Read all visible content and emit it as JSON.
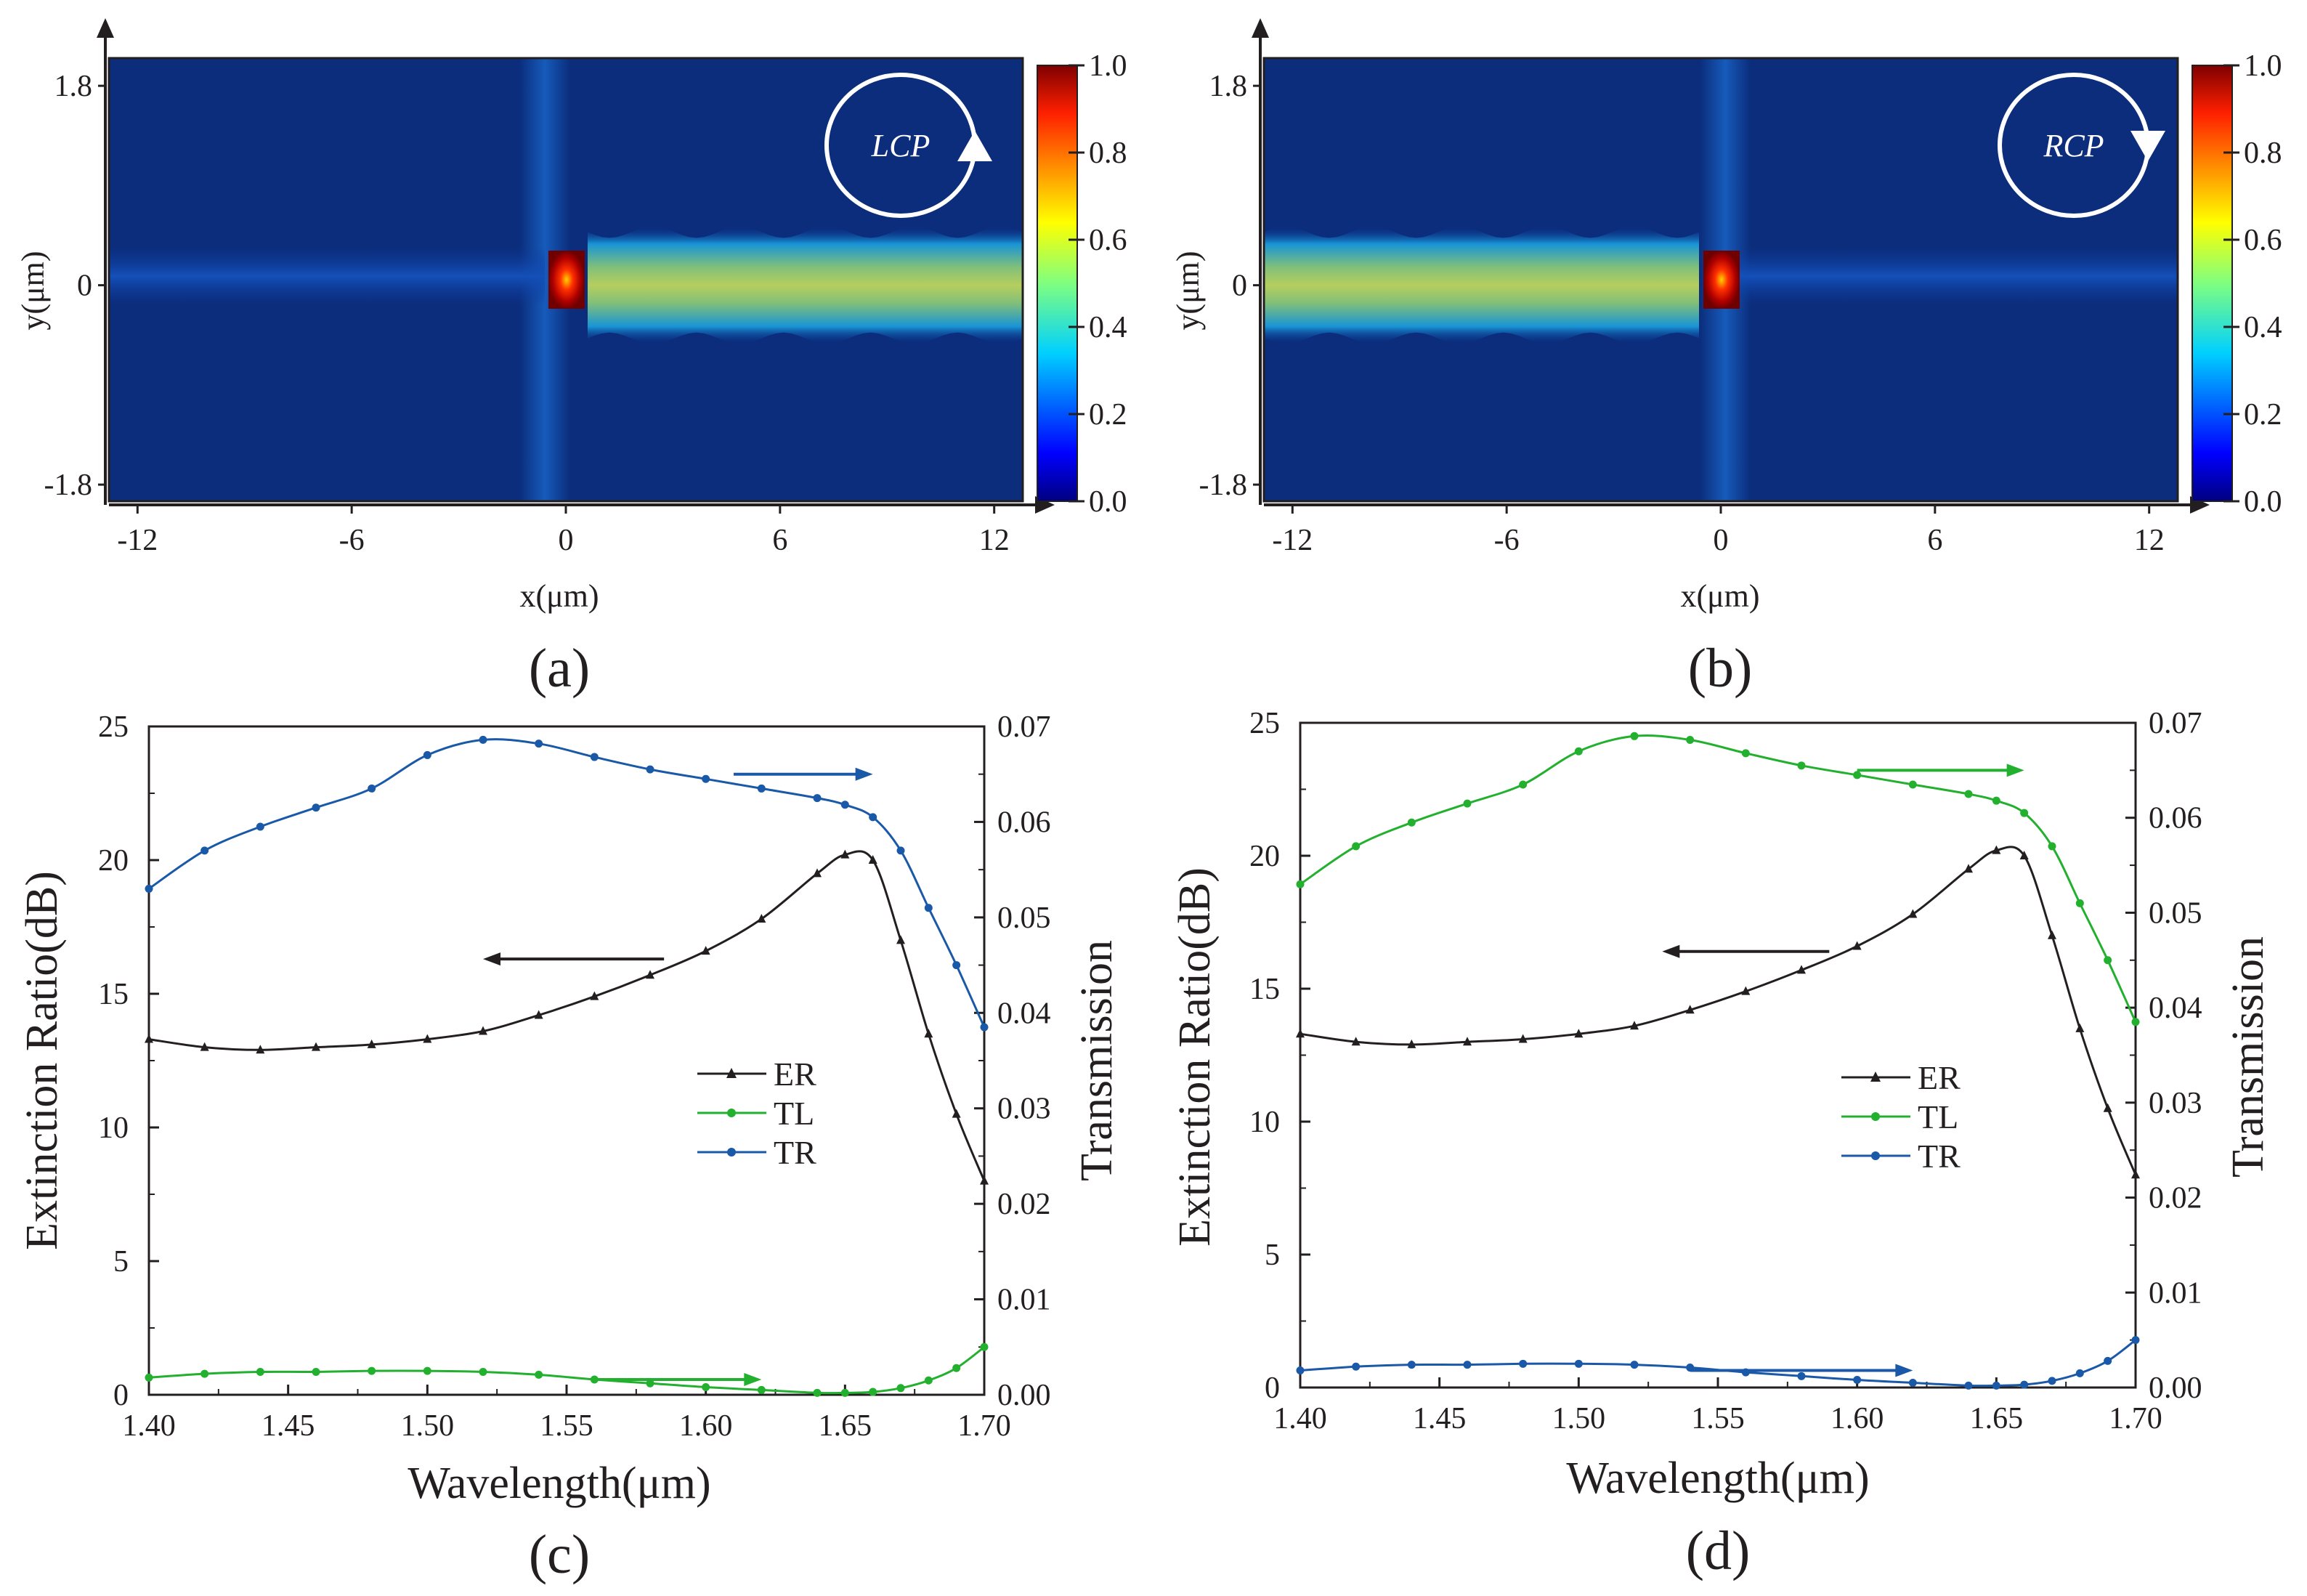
{
  "chart_data": [
    {
      "panel": "a",
      "type": "heatmap",
      "title": "",
      "xlabel": "x(μm)",
      "ylabel": "y(μm)",
      "x_ticks": [
        -12,
        -6,
        0,
        6,
        12
      ],
      "y_ticks": [
        1.8,
        0,
        -1.8
      ],
      "xlim": [
        -12.8,
        12.8
      ],
      "ylim": [
        -1.95,
        2.05
      ],
      "colorbar": {
        "ticks": [
          "1.0",
          "0.8",
          "0.6",
          "0.4",
          "0.2",
          "0.0"
        ],
        "min": 0.0,
        "max": 1.0
      },
      "polarization": "LCP",
      "field_description": "hot spot near x=0; guided beam of normalized intensity ~0.5 propagating toward +x",
      "hotspot_x": 0,
      "beam_direction": "+x",
      "beam_intensity": 0.5,
      "beam_halfwidth_um": 0.3
    },
    {
      "panel": "b",
      "type": "heatmap",
      "title": "",
      "xlabel": "x(μm)",
      "ylabel": "y(μm)",
      "x_ticks": [
        -12,
        -6,
        0,
        6,
        12
      ],
      "y_ticks": [
        1.8,
        0,
        -1.8
      ],
      "xlim": [
        -12.8,
        12.8
      ],
      "ylim": [
        -1.95,
        2.05
      ],
      "colorbar": {
        "ticks": [
          "1.0",
          "0.8",
          "0.6",
          "0.4",
          "0.2",
          "0.0"
        ],
        "min": 0.0,
        "max": 1.0
      },
      "polarization": "RCP",
      "field_description": "hot spot near x=0; guided beam of normalized intensity ~0.5 propagating toward -x",
      "hotspot_x": 0,
      "beam_direction": "-x",
      "beam_intensity": 0.5,
      "beam_halfwidth_um": 0.3
    },
    {
      "panel": "c",
      "type": "line",
      "xlabel": "Wavelength(μm)",
      "ylabel": "Extinction Ratio(dB)",
      "y2label": "Transmission",
      "x_ticks": [
        "1.40",
        "1.45",
        "1.50",
        "1.55",
        "1.60",
        "1.65",
        "1.70"
      ],
      "y_ticks": [
        "0",
        "5",
        "10",
        "15",
        "20",
        "25"
      ],
      "y2_ticks": [
        "0.00",
        "0.01",
        "0.02",
        "0.03",
        "0.04",
        "0.05",
        "0.06",
        "0.07"
      ],
      "xlim": [
        1.4,
        1.7
      ],
      "ylim": [
        0,
        25
      ],
      "y2lim": [
        0,
        0.07
      ],
      "legend": [
        "ER",
        "TL",
        "TR"
      ],
      "legend_position": "center-right",
      "wavelength": [
        1.4,
        1.42,
        1.44,
        1.46,
        1.48,
        1.5,
        1.52,
        1.54,
        1.56,
        1.58,
        1.6,
        1.62,
        1.64,
        1.65,
        1.66,
        1.67,
        1.68,
        1.69,
        1.7
      ],
      "series": [
        {
          "name": "ER",
          "axis": "left",
          "color": "#231f20",
          "marker": "triangle",
          "values": [
            13.3,
            13.0,
            12.9,
            13.0,
            13.1,
            13.3,
            13.6,
            14.2,
            14.9,
            15.7,
            16.6,
            17.8,
            19.5,
            20.2,
            20.0,
            17.0,
            13.5,
            10.5,
            8.0
          ]
        },
        {
          "name": "TL",
          "axis": "right",
          "color": "#22b02e",
          "marker": "circle",
          "values": [
            0.0018,
            0.0022,
            0.0024,
            0.0024,
            0.0025,
            0.0025,
            0.0024,
            0.0021,
            0.0016,
            0.0012,
            0.0008,
            0.0005,
            0.0002,
            0.0002,
            0.0003,
            0.0007,
            0.0015,
            0.0028,
            0.005
          ]
        },
        {
          "name": "TR",
          "axis": "right",
          "color": "#1a58a8",
          "marker": "circle",
          "values": [
            0.053,
            0.057,
            0.0595,
            0.0615,
            0.0635,
            0.067,
            0.0686,
            0.0682,
            0.0668,
            0.0655,
            0.0645,
            0.0635,
            0.0625,
            0.0618,
            0.0605,
            0.057,
            0.051,
            0.045,
            0.0385
          ]
        }
      ],
      "annotation_arrows": [
        {
          "series": "ER",
          "direction": "left",
          "from": [
            1.585,
            16.3
          ],
          "to": [
            1.52,
            16.3
          ]
        },
        {
          "series": "TR",
          "direction": "right",
          "from": [
            1.61,
            0.065
          ],
          "to": [
            1.66,
            0.065
          ]
        },
        {
          "series": "TL",
          "direction": "right",
          "from": [
            1.56,
            0.0016
          ],
          "to": [
            1.62,
            0.0016
          ]
        }
      ]
    },
    {
      "panel": "d",
      "type": "line",
      "xlabel": "Wavelength(μm)",
      "ylabel": "Extinction Ratio(dB)",
      "y2label": "Transmission",
      "x_ticks": [
        "1.40",
        "1.45",
        "1.50",
        "1.55",
        "1.60",
        "1.65",
        "1.70"
      ],
      "y_ticks": [
        "0",
        "5",
        "10",
        "15",
        "20",
        "25"
      ],
      "y2_ticks": [
        "0.00",
        "0.01",
        "0.02",
        "0.03",
        "0.04",
        "0.05",
        "0.06",
        "0.07"
      ],
      "xlim": [
        1.4,
        1.7
      ],
      "ylim": [
        0,
        25
      ],
      "y2lim": [
        0,
        0.07
      ],
      "legend": [
        "ER",
        "TL",
        "TR"
      ],
      "legend_position": "center-right",
      "wavelength": [
        1.4,
        1.42,
        1.44,
        1.46,
        1.48,
        1.5,
        1.52,
        1.54,
        1.56,
        1.58,
        1.6,
        1.62,
        1.64,
        1.65,
        1.66,
        1.67,
        1.68,
        1.69,
        1.7
      ],
      "series": [
        {
          "name": "ER",
          "axis": "left",
          "color": "#231f20",
          "marker": "triangle",
          "values": [
            13.3,
            13.0,
            12.9,
            13.0,
            13.1,
            13.3,
            13.6,
            14.2,
            14.9,
            15.7,
            16.6,
            17.8,
            19.5,
            20.2,
            20.0,
            17.0,
            13.5,
            10.5,
            8.0
          ]
        },
        {
          "name": "TL",
          "axis": "right",
          "color": "#22b02e",
          "marker": "circle",
          "values": [
            0.053,
            0.057,
            0.0595,
            0.0615,
            0.0635,
            0.067,
            0.0686,
            0.0682,
            0.0668,
            0.0655,
            0.0645,
            0.0635,
            0.0625,
            0.0618,
            0.0605,
            0.057,
            0.051,
            0.045,
            0.0385
          ]
        },
        {
          "name": "TR",
          "axis": "right",
          "color": "#1a58a8",
          "marker": "circle",
          "values": [
            0.0018,
            0.0022,
            0.0024,
            0.0024,
            0.0025,
            0.0025,
            0.0024,
            0.0021,
            0.0016,
            0.0012,
            0.0008,
            0.0005,
            0.0002,
            0.0002,
            0.0003,
            0.0007,
            0.0015,
            0.0028,
            0.005
          ]
        }
      ],
      "annotation_arrows": [
        {
          "series": "ER",
          "direction": "left",
          "from": [
            1.59,
            16.4
          ],
          "to": [
            1.53,
            16.4
          ]
        },
        {
          "series": "TL",
          "direction": "right",
          "from": [
            1.6,
            0.065
          ],
          "to": [
            1.66,
            0.065
          ]
        },
        {
          "series": "TR",
          "direction": "right",
          "from": [
            1.54,
            0.0018
          ],
          "to": [
            1.62,
            0.0018
          ]
        }
      ]
    }
  ],
  "panel_labels": [
    "(a)",
    "(b)",
    "(c)",
    "(d)"
  ]
}
